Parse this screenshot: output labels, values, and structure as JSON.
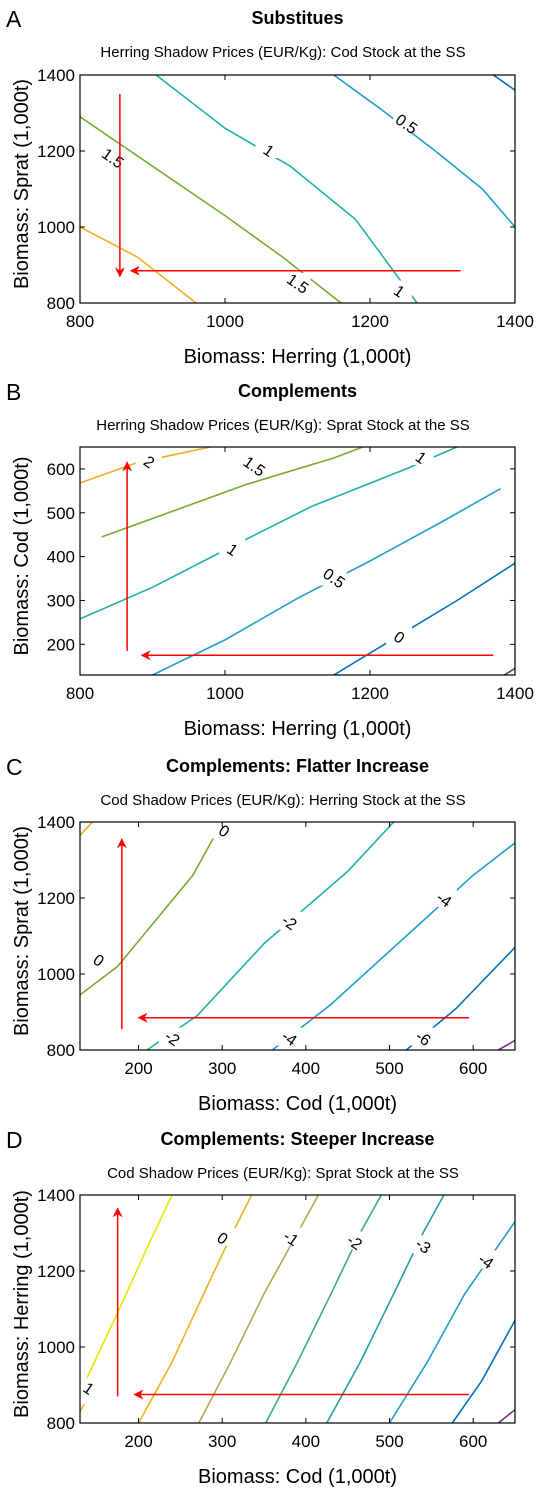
{
  "arrow_color": "#ff0000",
  "chart_data": [
    {
      "type": "contour",
      "panel": "A",
      "title": "Substitues",
      "subtitle": "Herring Shadow Prices (EUR/Kg): Cod Stock at the SS",
      "xlabel": "Biomass: Herring (1,000t)",
      "ylabel": "Biomass: Sprat (1,000t)",
      "xlim": [
        800,
        1400
      ],
      "ylim": [
        800,
        1400
      ],
      "xticks": [
        800,
        1000,
        1200,
        1400
      ],
      "yticks": [
        800,
        1000,
        1200,
        1400
      ],
      "contours": [
        {
          "level": "2",
          "color": "#edb120",
          "points": [
            [
              800,
              1000
            ],
            [
              880,
              920
            ],
            [
              960,
              800
            ]
          ],
          "labels": []
        },
        {
          "level": "1.5",
          "color": "#77ac30",
          "points": [
            [
              800,
              1290
            ],
            [
              900,
              1160
            ],
            [
              1000,
              1030
            ],
            [
              1080,
              920
            ],
            [
              1160,
              800
            ]
          ],
          "labels": [
            {
              "x": 845,
              "y": 1180,
              "text": "1.5"
            },
            {
              "x": 1100,
              "y": 850,
              "text": "1.5"
            }
          ]
        },
        {
          "level": "1",
          "color": "#20b2aa",
          "points": [
            [
              905,
              1400
            ],
            [
              1000,
              1260
            ],
            [
              1090,
              1160
            ],
            [
              1180,
              1020
            ],
            [
              1265,
              800
            ]
          ],
          "labels": [
            {
              "x": 1060,
              "y": 1200,
              "text": "1"
            },
            {
              "x": 1240,
              "y": 830,
              "text": "1"
            }
          ]
        },
        {
          "level": "0.5",
          "color": "#1fa0c8",
          "points": [
            [
              1150,
              1400
            ],
            [
              1215,
              1310
            ],
            [
              1290,
              1200
            ],
            [
              1355,
              1100
            ],
            [
              1400,
              1000
            ]
          ],
          "labels": [
            {
              "x": 1250,
              "y": 1270,
              "text": "0.5"
            }
          ]
        },
        {
          "level": "0",
          "color": "#0072bd",
          "points": [
            [
              1370,
              1400
            ],
            [
              1400,
              1360
            ]
          ],
          "labels": []
        }
      ],
      "arrows": [
        {
          "from": [
            855,
            1350
          ],
          "to": [
            855,
            870
          ]
        },
        {
          "from": [
            1325,
            885
          ],
          "to": [
            870,
            885
          ]
        }
      ]
    },
    {
      "type": "contour",
      "panel": "B",
      "title": "Complements",
      "subtitle": "Herring Shadow Prices (EUR/Kg): Sprat Stock at the SS",
      "xlabel": "Biomass: Herring (1,000t)",
      "ylabel": "Biomass: Cod (1,000t)",
      "xlim": [
        800,
        1400
      ],
      "ylim": [
        130,
        650
      ],
      "xticks": [
        800,
        1000,
        1200,
        1400
      ],
      "yticks": [
        200,
        300,
        400,
        500,
        600
      ],
      "contours": [
        {
          "level": "2",
          "color": "#edb120",
          "points": [
            [
              800,
              568
            ],
            [
              880,
              615
            ],
            [
              980,
              650
            ]
          ],
          "labels": [
            {
              "x": 895,
              "y": 615,
              "text": "2"
            }
          ]
        },
        {
          "level": "1.5",
          "color": "#77ac30",
          "points": [
            [
              830,
              445
            ],
            [
              930,
              505
            ],
            [
              1030,
              565
            ],
            [
              1150,
              625
            ],
            [
              1190,
              650
            ]
          ],
          "labels": [
            {
              "x": 1040,
              "y": 605,
              "text": "1.5"
            }
          ]
        },
        {
          "level": "1",
          "color": "#20b2aa",
          "points": [
            [
              800,
              258
            ],
            [
              900,
              330
            ],
            [
              1000,
              415
            ],
            [
              1120,
              515
            ],
            [
              1250,
              600
            ],
            [
              1320,
              650
            ]
          ],
          "labels": [
            {
              "x": 1010,
              "y": 415,
              "text": "1"
            },
            {
              "x": 1270,
              "y": 625,
              "text": "1"
            }
          ]
        },
        {
          "level": "0.5",
          "color": "#1fa0c8",
          "points": [
            [
              900,
              130
            ],
            [
              1000,
              210
            ],
            [
              1100,
              305
            ],
            [
              1200,
              390
            ],
            [
              1300,
              480
            ],
            [
              1380,
              555
            ]
          ],
          "labels": [
            {
              "x": 1150,
              "y": 350,
              "text": "0.5"
            }
          ]
        },
        {
          "level": "0",
          "color": "#0072bd",
          "points": [
            [
              1150,
              130
            ],
            [
              1230,
              210
            ],
            [
              1320,
              300
            ],
            [
              1400,
              385
            ]
          ],
          "labels": [
            {
              "x": 1240,
              "y": 215,
              "text": "0"
            }
          ]
        },
        {
          "level": "-0.5",
          "color": "#7e2f8e",
          "points": [
            [
              1385,
              130
            ],
            [
              1400,
              145
            ]
          ],
          "labels": []
        }
      ],
      "arrows": [
        {
          "from": [
            865,
            185
          ],
          "to": [
            865,
            615
          ]
        },
        {
          "from": [
            1370,
            175
          ],
          "to": [
            885,
            175
          ]
        }
      ]
    },
    {
      "type": "contour",
      "panel": "C",
      "title": "Complements: Flatter Increase",
      "subtitle": "Cod Shadow Prices (EUR/Kg): Herring Stock at the SS",
      "xlabel": "Biomass: Cod (1,000t)",
      "ylabel": "Biomass: Sprat (1,000t)",
      "xlim": [
        130,
        650
      ],
      "ylim": [
        800,
        1400
      ],
      "xticks": [
        200,
        300,
        400,
        500,
        600
      ],
      "yticks": [
        800,
        1000,
        1200,
        1400
      ],
      "contours": [
        {
          "level": "2",
          "color": "#edb120",
          "points": [
            [
              130,
              1365
            ],
            [
              145,
              1400
            ]
          ],
          "labels": []
        },
        {
          "level": "0",
          "color": "#77ac30",
          "points": [
            [
              130,
              945
            ],
            [
              175,
              1020
            ],
            [
              220,
              1140
            ],
            [
              265,
              1260
            ],
            [
              300,
              1400
            ]
          ],
          "labels": [
            {
              "x": 152,
              "y": 1035,
              "text": "0"
            },
            {
              "x": 302,
              "y": 1375,
              "text": "0"
            }
          ]
        },
        {
          "level": "-2",
          "color": "#20b2aa",
          "points": [
            [
              210,
              800
            ],
            [
              270,
              890
            ],
            [
              350,
              1080
            ],
            [
              450,
              1270
            ],
            [
              505,
              1400
            ]
          ],
          "labels": [
            {
              "x": 240,
              "y": 830,
              "text": "-2"
            },
            {
              "x": 380,
              "y": 1135,
              "text": "-2"
            }
          ]
        },
        {
          "level": "-4",
          "color": "#1fa0c8",
          "points": [
            [
              360,
              800
            ],
            [
              430,
              920
            ],
            [
              520,
              1100
            ],
            [
              600,
              1260
            ],
            [
              650,
              1345
            ]
          ],
          "labels": [
            {
              "x": 380,
              "y": 830,
              "text": "-4"
            },
            {
              "x": 565,
              "y": 1195,
              "text": "-4"
            }
          ]
        },
        {
          "level": "-6",
          "color": "#0072bd",
          "points": [
            [
              520,
              800
            ],
            [
              580,
              910
            ],
            [
              650,
              1070
            ]
          ],
          "labels": [
            {
              "x": 540,
              "y": 830,
              "text": "-6"
            }
          ]
        },
        {
          "level": "-8",
          "color": "#7e2f8e",
          "points": [
            [
              630,
              800
            ],
            [
              650,
              825
            ]
          ],
          "labels": []
        }
      ],
      "arrows": [
        {
          "from": [
            180,
            855
          ],
          "to": [
            180,
            1355
          ]
        },
        {
          "from": [
            595,
            885
          ],
          "to": [
            200,
            885
          ]
        }
      ]
    },
    {
      "type": "contour",
      "panel": "D",
      "title": "Complements: Steeper Increase",
      "subtitle": "Cod Shadow Prices (EUR/Kg): Sprat Stock at the SS",
      "xlabel": "Biomass: Cod (1,000t)",
      "ylabel": "Biomass: Herring (1,000t)",
      "xlim": [
        130,
        650
      ],
      "ylim": [
        800,
        1400
      ],
      "xticks": [
        200,
        300,
        400,
        500,
        600
      ],
      "yticks": [
        800,
        1000,
        1200,
        1400
      ],
      "contours": [
        {
          "level": "2",
          "color": "#e6e600",
          "points": [
            [
              130,
              880
            ],
            [
              175,
              1090
            ],
            [
              210,
              1260
            ],
            [
              240,
              1400
            ]
          ],
          "labels": []
        },
        {
          "level": "1",
          "color": "#edb120",
          "points": [
            [
              130,
              830
            ],
            [
              135,
              850
            ]
          ],
          "labels": [
            {
              "x": 140,
              "y": 890,
              "text": "1"
            }
          ]
        },
        {
          "level": "0",
          "color": "#edb120",
          "points": [
            [
              200,
              800
            ],
            [
              240,
              960
            ],
            [
              280,
              1150
            ],
            [
              310,
              1290
            ],
            [
              335,
              1400
            ]
          ],
          "labels": [
            {
              "x": 300,
              "y": 1285,
              "text": "0"
            }
          ]
        },
        {
          "level": "-1",
          "color": "#b3a84f",
          "points": [
            [
              272,
              800
            ],
            [
              310,
              960
            ],
            [
              350,
              1140
            ],
            [
              390,
              1300
            ],
            [
              415,
              1400
            ]
          ],
          "labels": [
            {
              "x": 382,
              "y": 1285,
              "text": "-1"
            }
          ]
        },
        {
          "level": "-2",
          "color": "#3cae75",
          "points": [
            [
              352,
              800
            ],
            [
              390,
              960
            ],
            [
              430,
              1140
            ],
            [
              465,
              1300
            ],
            [
              490,
              1400
            ]
          ],
          "labels": [
            {
              "x": 458,
              "y": 1275,
              "text": "-2"
            }
          ]
        },
        {
          "level": "-3",
          "color": "#22a0a0",
          "points": [
            [
              425,
              800
            ],
            [
              465,
              960
            ],
            [
              505,
              1140
            ],
            [
              540,
              1300
            ],
            [
              565,
              1400
            ]
          ],
          "labels": [
            {
              "x": 540,
              "y": 1265,
              "text": "-3"
            }
          ]
        },
        {
          "level": "-4",
          "color": "#1fa0c8",
          "points": [
            [
              500,
              800
            ],
            [
              545,
              960
            ],
            [
              590,
              1140
            ],
            [
              650,
              1330
            ]
          ],
          "labels": [
            {
              "x": 615,
              "y": 1225,
              "text": "-4"
            }
          ]
        },
        {
          "level": "-5",
          "color": "#0072bd",
          "points": [
            [
              575,
              800
            ],
            [
              610,
              910
            ],
            [
              650,
              1070
            ]
          ],
          "labels": []
        },
        {
          "level": "-6",
          "color": "#7e2f8e",
          "points": [
            [
              630,
              800
            ],
            [
              650,
              835
            ]
          ],
          "labels": []
        }
      ],
      "arrows": [
        {
          "from": [
            175,
            870
          ],
          "to": [
            175,
            1365
          ]
        },
        {
          "from": [
            595,
            875
          ],
          "to": [
            195,
            875
          ]
        }
      ]
    }
  ]
}
